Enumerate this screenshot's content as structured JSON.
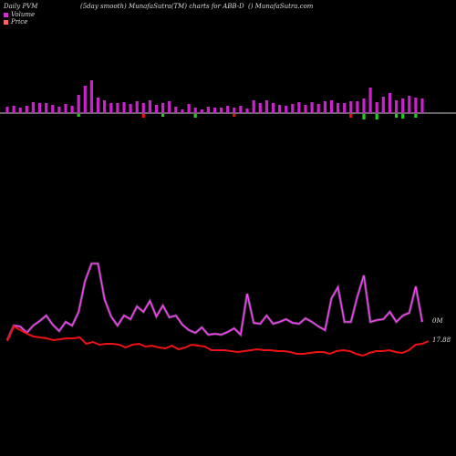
{
  "header": {
    "left": "Daily PVM",
    "center": "(5day smooth) MunafaSutra(TM) charts for ABB-D",
    "right": "() MunafaSutra.com"
  },
  "legend": [
    {
      "label": "Volume",
      "color": "#cc33cc"
    },
    {
      "label": "Price",
      "color": "#ff6666"
    }
  ],
  "labels": {
    "volume_value": "0M",
    "price_value": "17.88"
  },
  "colors": {
    "background": "#000000",
    "volume_line": "#ff44ff",
    "price_line": "#ee1111",
    "bar_up": "#cc22cc",
    "bar_down_red": "#ee1111",
    "bar_down_green": "#22cc22",
    "baseline": "#cccccc"
  },
  "chart_data": {
    "type": "line",
    "bars": {
      "up": [
        7,
        8,
        6,
        8,
        12,
        11,
        11,
        9,
        7,
        10,
        8,
        20,
        30,
        36,
        17,
        14,
        11,
        11,
        12,
        10,
        13,
        11,
        14,
        9,
        11,
        13,
        7,
        4,
        10,
        6,
        4,
        7,
        6,
        6,
        8,
        6,
        8,
        5,
        14,
        11,
        14,
        11,
        9,
        8,
        10,
        12,
        9,
        12,
        10,
        13,
        14,
        11,
        11,
        13,
        13,
        16,
        28,
        12,
        18,
        22,
        14,
        16,
        19,
        17,
        16
      ],
      "down": [
        0,
        0,
        0,
        0,
        0,
        0,
        0,
        0,
        0,
        0,
        0,
        3,
        0,
        0,
        0,
        0,
        0,
        0,
        0,
        0,
        0,
        4,
        0,
        0,
        3,
        0,
        0,
        0,
        0,
        4,
        0,
        0,
        0,
        0,
        0,
        3,
        0,
        0,
        0,
        0,
        0,
        0,
        0,
        0,
        0,
        0,
        0,
        0,
        0,
        0,
        0,
        0,
        0,
        4,
        0,
        6,
        0,
        6,
        0,
        0,
        4,
        5,
        0,
        4,
        0
      ],
      "down_color": [
        "",
        "",
        "",
        "",
        "",
        "",
        "",
        "",
        "",
        "",
        "",
        "g",
        "",
        "",
        "",
        "",
        "",
        "",
        "",
        "",
        "",
        "r",
        "",
        "",
        "g",
        "",
        "",
        "",
        "",
        "g",
        "",
        "",
        "",
        "",
        "",
        "r",
        "",
        "",
        "",
        "",
        "",
        "",
        "",
        "",
        "",
        "",
        "",
        "",
        "",
        "",
        "",
        "",
        "",
        "r",
        "",
        "g",
        "",
        "g",
        "",
        "",
        "g",
        "g",
        "",
        "g",
        ""
      ]
    },
    "volume": [
      373,
      357,
      358,
      365,
      357,
      352,
      346,
      356,
      363,
      353,
      357,
      342,
      308,
      289,
      289,
      328,
      347,
      357,
      346,
      350,
      336,
      342,
      330,
      347,
      335,
      348,
      346,
      356,
      362,
      365,
      359,
      367,
      366,
      367,
      364,
      360,
      367,
      322,
      354,
      355,
      346,
      355,
      353,
      350,
      354,
      355,
      349,
      353,
      358,
      362,
      327,
      315,
      353,
      353,
      325,
      302,
      353,
      351,
      350,
      342,
      353,
      346,
      343,
      314,
      353
    ]
  },
  "price_series": [
    374,
    358,
    362,
    366,
    369,
    370,
    371,
    373,
    372,
    371,
    371,
    370,
    377,
    375,
    378,
    377,
    377,
    378,
    381,
    378,
    377,
    380,
    379,
    381,
    382,
    379,
    383,
    381,
    378,
    379,
    380,
    384,
    384,
    384,
    385,
    386,
    385,
    384,
    383,
    384,
    384,
    385,
    385,
    386,
    388,
    388,
    387,
    386,
    386,
    388,
    385,
    384,
    385,
    388,
    390,
    387,
    385,
    385,
    384,
    386,
    387,
    384,
    378,
    377,
    374
  ]
}
